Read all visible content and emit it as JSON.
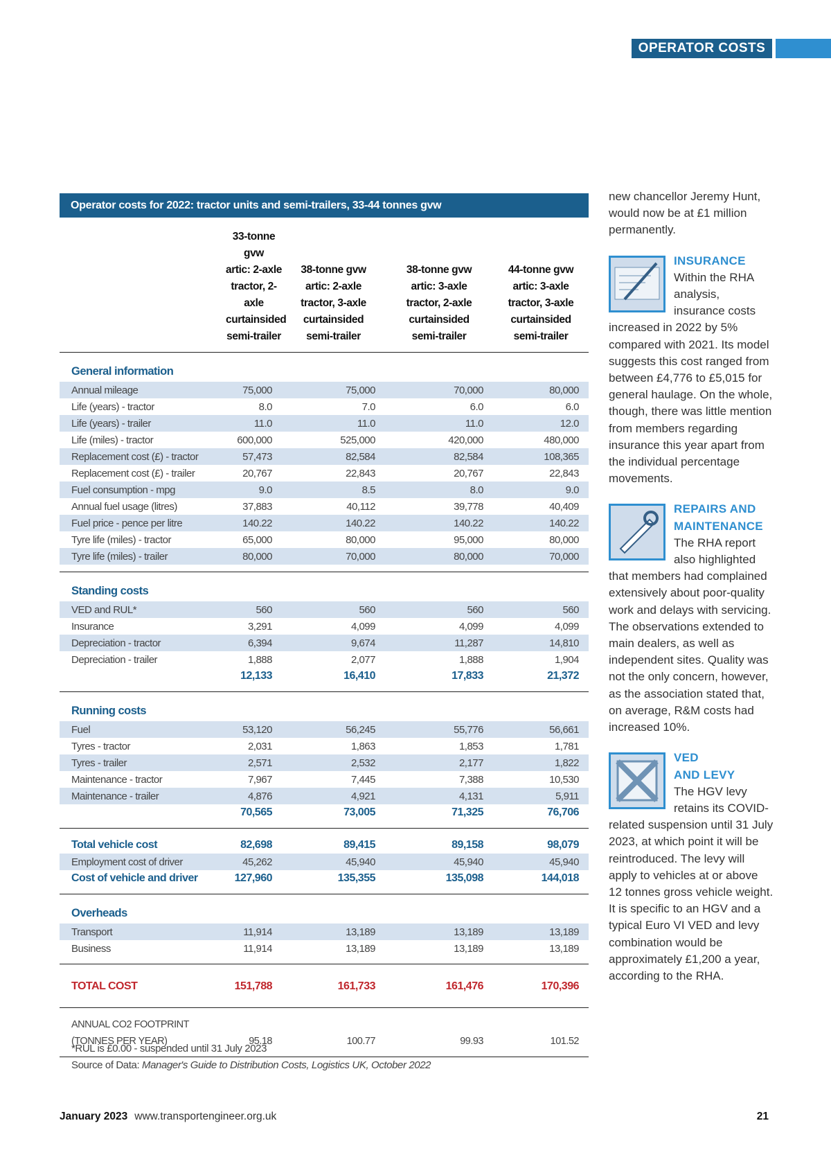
{
  "header": {
    "section": "OPERATOR COSTS"
  },
  "table": {
    "title": "Operator costs for 2022: tractor units and semi-trailers, 33-44 tonnes gvw",
    "columns": [
      [
        "33-tonne gvw",
        "artic: 2-axle",
        "tractor, 2-axle",
        "curtainsided",
        "semi-trailer"
      ],
      [
        "38-tonne gvw",
        "artic: 2-axle",
        "tractor, 3-axle",
        "curtainsided",
        "semi-trailer"
      ],
      [
        "38-tonne gvw",
        "artic: 3-axle",
        "tractor, 2-axle",
        "curtainsided",
        "semi-trailer"
      ],
      [
        "44-tonne gvw",
        "artic: 3-axle",
        "tractor, 3-axle",
        "curtainsided",
        "semi-trailer"
      ]
    ],
    "blocks": [
      {
        "heading": "General information",
        "rows": [
          {
            "label": "Annual mileage",
            "values": [
              "75,000",
              "75,000",
              "70,000",
              "80,000"
            ]
          },
          {
            "label": "Life (years) - tractor",
            "values": [
              "8.0",
              "7.0",
              "6.0",
              "6.0"
            ]
          },
          {
            "label": "Life (years) - trailer",
            "values": [
              "11.0",
              "11.0",
              "11.0",
              "12.0"
            ]
          },
          {
            "label": "Life (miles) - tractor",
            "values": [
              "600,000",
              "525,000",
              "420,000",
              "480,000"
            ]
          },
          {
            "label": "Replacement cost (£) - tractor",
            "values": [
              "57,473",
              "82,584",
              "82,584",
              "108,365"
            ]
          },
          {
            "label": "Replacement cost (£) - trailer",
            "values": [
              "20,767",
              "22,843",
              "20,767",
              "22,843"
            ]
          },
          {
            "label": "Fuel consumption - mpg",
            "values": [
              "9.0",
              "8.5",
              "8.0",
              "9.0"
            ]
          },
          {
            "label": "Annual fuel usage (litres)",
            "values": [
              "37,883",
              "40,112",
              "39,778",
              "40,409"
            ]
          },
          {
            "label": "Fuel price - pence per litre",
            "values": [
              "140.22",
              "140.22",
              "140.22",
              "140.22"
            ]
          },
          {
            "label": "Tyre life (miles) - tractor",
            "values": [
              "65,000",
              "80,000",
              "95,000",
              "80,000"
            ]
          },
          {
            "label": "Tyre life (miles) - trailer",
            "values": [
              "80,000",
              "70,000",
              "80,000",
              "70,000"
            ]
          }
        ]
      },
      {
        "heading": "Standing costs",
        "rows": [
          {
            "label": "VED and RUL*",
            "values": [
              "560",
              "560",
              "560",
              "560"
            ]
          },
          {
            "label": "Insurance",
            "values": [
              "3,291",
              "4,099",
              "4,099",
              "4,099"
            ]
          },
          {
            "label": "Depreciation - tractor",
            "values": [
              "6,394",
              "9,674",
              "11,287",
              "14,810"
            ]
          },
          {
            "label": "Depreciation - trailer",
            "values": [
              "1,888",
              "2,077",
              "1,888",
              "1,904"
            ]
          }
        ],
        "total": [
          "12,133",
          "16,410",
          "17,833",
          "21,372"
        ]
      },
      {
        "heading": "Running costs",
        "rows": [
          {
            "label": "Fuel",
            "values": [
              "53,120",
              "56,245",
              "55,776",
              "56,661"
            ]
          },
          {
            "label": "Tyres - tractor",
            "values": [
              "2,031",
              "1,863",
              "1,853",
              "1,781"
            ]
          },
          {
            "label": "Tyres - trailer",
            "values": [
              "2,571",
              "2,532",
              "2,177",
              "1,822"
            ]
          },
          {
            "label": "Maintenance - tractor",
            "values": [
              "7,967",
              "7,445",
              "7,388",
              "10,530"
            ]
          },
          {
            "label": "Maintenance - trailer",
            "values": [
              "4,876",
              "4,921",
              "4,131",
              "5,911"
            ]
          }
        ],
        "total": [
          "70,565",
          "73,005",
          "71,325",
          "76,706"
        ]
      },
      {
        "lead": {
          "label": "Total vehicle cost",
          "values": [
            "82,698",
            "89,415",
            "89,158",
            "98,079"
          ]
        },
        "rows": [
          {
            "label": "Employment cost of driver",
            "values": [
              "45,262",
              "45,940",
              "45,940",
              "45,940"
            ]
          }
        ],
        "close": {
          "label": "Cost of vehicle and driver",
          "values": [
            "127,960",
            "135,355",
            "135,098",
            "144,018"
          ]
        }
      },
      {
        "heading": "Overheads",
        "rows": [
          {
            "label": "Transport",
            "values": [
              "11,914",
              "13,189",
              "13,189",
              "13,189"
            ]
          },
          {
            "label": "Business",
            "values": [
              "11,914",
              "13,189",
              "13,189",
              "13,189"
            ]
          }
        ]
      },
      {
        "grand": {
          "label": "TOTAL COST",
          "values": [
            "151,788",
            "161,733",
            "161,476",
            "170,396"
          ]
        }
      },
      {
        "footprint": {
          "label_lines": [
            "ANNUAL CO2 FOOTPRINT",
            "(TONNES PER YEAR)"
          ],
          "values": [
            "95.18",
            "100.77",
            "99.93",
            "101.52"
          ]
        }
      }
    ],
    "footnote": "*RUL is £0.00 - suspended until 31 July 2023",
    "source_prefix": "Source of Data:",
    "source": "Manager's Guide to Distribution Costs, Logistics UK, October 2022"
  },
  "sidebar": {
    "intro": "new chancellor Jeremy Hunt, would now be at £1 million permanently.",
    "boxes": [
      {
        "heading_lines": [
          "INSURANCE"
        ],
        "text": "Within the RHA analysis, insurance costs increased in 2022 by 5% compared with 2021. Its model suggests this cost ranged from between £4,776 to £5,015 for general haulage. On the whole, though, there was little mention from members regarding insurance this year apart from the individual percentage movements."
      },
      {
        "heading_lines": [
          "REPAIRS AND",
          "MAINTENANCE"
        ],
        "text": "The RHA report also highlighted that members had complained extensively about poor-quality work and delays with servicing. The observations extended to main dealers, as well as independent sites. Quality was not the only concern, however, as the association stated that, on average, R&M costs had increased 10%."
      },
      {
        "heading_lines": [
          "VED",
          "AND LEVY"
        ],
        "text": "The HGV levy retains its COVID-related suspension until 31 July 2023, at which point it will be reintroduced. The levy will apply to vehicles at or above 12 tonnes gross vehicle weight. It is specific to an HGV and a typical Euro VI VED and levy combination would be approximately £1,200 a year, according to the RHA."
      }
    ]
  },
  "footer": {
    "month": "January 2023",
    "url": "www.transportengineer.org.uk",
    "page": "21"
  }
}
